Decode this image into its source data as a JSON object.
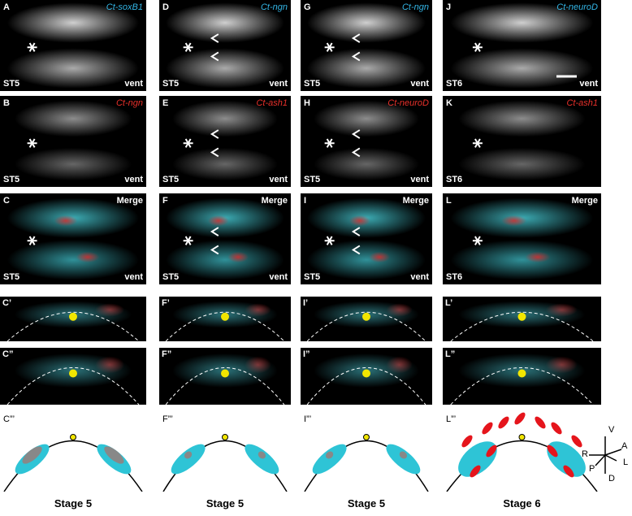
{
  "columns": [
    {
      "panels": [
        {
          "letter": "A",
          "label": "Ct-soxB1",
          "stage": "ST5",
          "view": "vent"
        },
        {
          "letter": "B",
          "label": "Ct-ngn",
          "stage": "ST5",
          "view": "vent"
        },
        {
          "letter": "C",
          "label": "Merge",
          "stage": "ST5",
          "view": "vent"
        }
      ],
      "sections": [
        "C’",
        "C”"
      ],
      "schematic": "C”’",
      "stage": "Stage 5"
    },
    {
      "panels": [
        {
          "letter": "D",
          "label": "Ct-ngn",
          "stage": "ST5",
          "view": "vent"
        },
        {
          "letter": "E",
          "label": "Ct-ash1",
          "stage": "ST5",
          "view": "vent"
        },
        {
          "letter": "F",
          "label": "Merge",
          "stage": "ST5",
          "view": "vent"
        }
      ],
      "sections": [
        "F’",
        "F”"
      ],
      "schematic": "F”’",
      "stage": "Stage 5"
    },
    {
      "panels": [
        {
          "letter": "G",
          "label": "Ct-ngn",
          "stage": "ST5",
          "view": "vent"
        },
        {
          "letter": "H",
          "label": "Ct-neuroD",
          "stage": "ST5",
          "view": "vent"
        },
        {
          "letter": "I",
          "label": "Merge",
          "stage": "ST5",
          "view": "vent"
        }
      ],
      "sections": [
        "I’",
        "I”"
      ],
      "schematic": "I”’",
      "stage": "Stage 5"
    },
    {
      "panels": [
        {
          "letter": "J",
          "label": "Ct-neuroD",
          "stage": "ST6",
          "view": "vent"
        },
        {
          "letter": "K",
          "label": "Ct-ash1",
          "stage": "ST6"
        },
        {
          "letter": "L",
          "label": "Merge",
          "stage": "ST6"
        }
      ],
      "sections": [
        "L’",
        "L”"
      ],
      "schematic": "L”’",
      "stage": "Stage 6"
    }
  ],
  "axes": {
    "up": "V",
    "anterior": "A",
    "left": "L",
    "down": "D",
    "posterior": "P",
    "right": "R"
  }
}
